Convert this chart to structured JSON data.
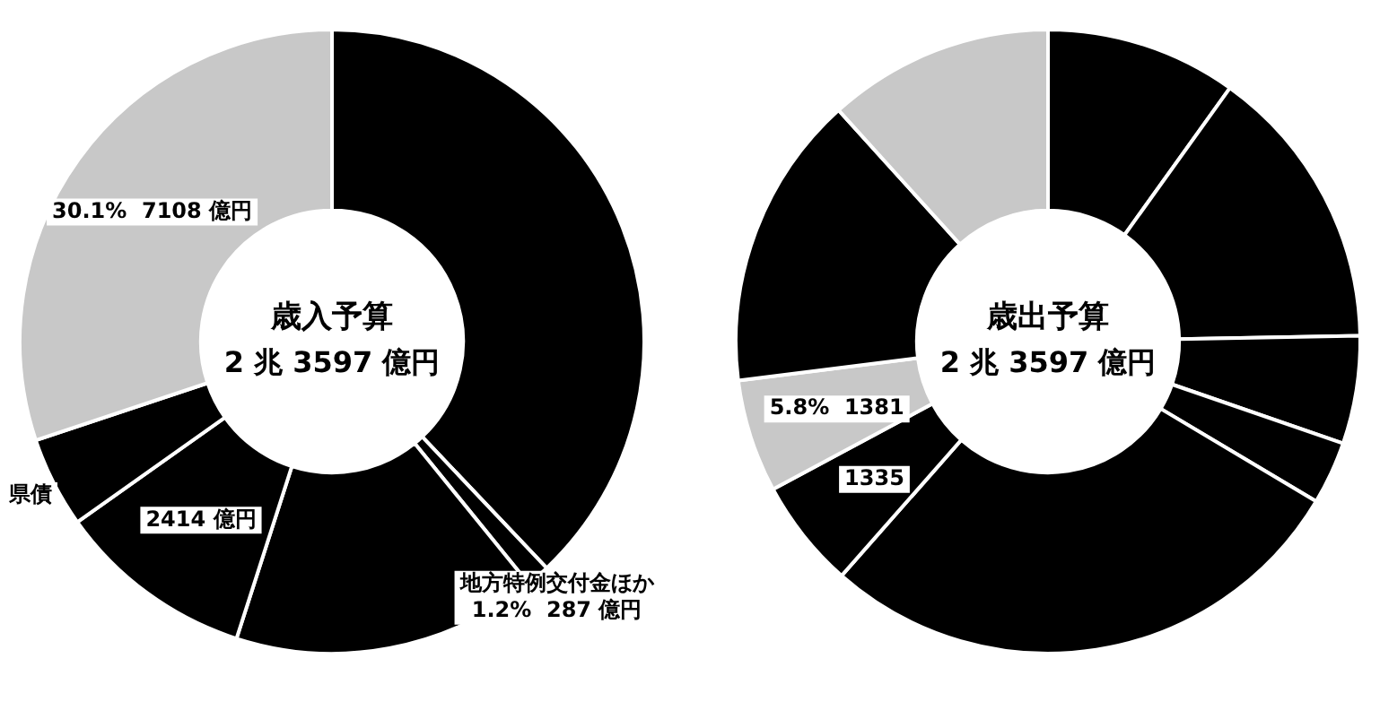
{
  "chart_data": [
    {
      "type": "donut",
      "title": "歳入予算",
      "subtitle": "2 兆 3597 億円",
      "legend": false,
      "categories": [
        null,
        "地方特例交付金ほか",
        null,
        null,
        "県債",
        null
      ],
      "values": [
        8951,
        287,
        3728,
        2414,
        1109,
        7108
      ],
      "colors": [
        "#000000",
        "#000000",
        "#000000",
        "#000000",
        "#000000",
        "#c8c8c8"
      ],
      "value_labels": [
        null,
        "1.2%  287 億円",
        null,
        "2414 億円",
        null,
        "30.1%  7108 億円"
      ]
    },
    {
      "type": "donut",
      "title": "歳出予算",
      "subtitle": "2 兆 3597 億円",
      "legend": false,
      "categories": [
        null,
        null,
        null,
        null,
        null,
        null,
        null,
        null,
        null
      ],
      "values": [
        2336,
        3492,
        1321,
        770,
        6591,
        1335,
        1381,
        3610,
        2761
      ],
      "colors": [
        "#000000",
        "#000000",
        "#000000",
        "#000000",
        "#000000",
        "#000000",
        "#c8c8c8",
        "#000000",
        "#c8c8c8"
      ],
      "value_labels": [
        null,
        null,
        null,
        null,
        null,
        "1335",
        "5.8%  1381",
        null,
        null
      ]
    }
  ]
}
